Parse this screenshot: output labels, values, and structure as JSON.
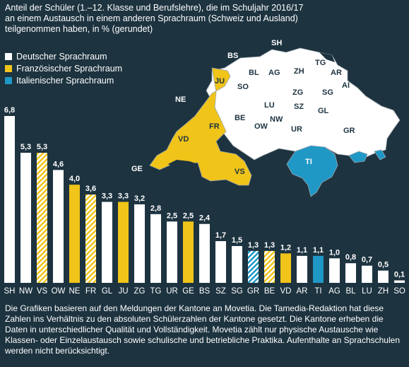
{
  "title": "Anteil der Schüler (1.–12. Klasse und Berufslehre), die im Schuljahr 2016/17\nan einem Austausch in einem anderen Sprachraum (Schweiz und Ausland)\nteilgenommen haben, in % (gerundet)",
  "legend": [
    {
      "label": "Deutscher Sprachraum",
      "color": "#ffffff"
    },
    {
      "label": "Französischer Sprachraum",
      "color": "#f0c419"
    },
    {
      "label": "Italienischer Sprachraum",
      "color": "#1f98c6"
    }
  ],
  "map_labels": [
    {
      "text": "SH"
    },
    {
      "text": "BS"
    },
    {
      "text": "TG"
    },
    {
      "text": "JU"
    },
    {
      "text": "BL"
    },
    {
      "text": "AG"
    },
    {
      "text": "ZH"
    },
    {
      "text": "AR"
    },
    {
      "text": "AI"
    },
    {
      "text": "SO"
    },
    {
      "text": "ZG"
    },
    {
      "text": "SG"
    },
    {
      "text": "NE"
    },
    {
      "text": "LU"
    },
    {
      "text": "SZ"
    },
    {
      "text": "GL"
    },
    {
      "text": "NW"
    },
    {
      "text": "BE"
    },
    {
      "text": "FR"
    },
    {
      "text": "OW"
    },
    {
      "text": "UR"
    },
    {
      "text": "GR"
    },
    {
      "text": "VD"
    },
    {
      "text": "TI"
    },
    {
      "text": "VS"
    },
    {
      "text": "GE"
    }
  ],
  "chart_data": {
    "type": "bar",
    "categories": [
      "SH",
      "NW",
      "VS",
      "OW",
      "NE",
      "FR",
      "GL",
      "JU",
      "ZG",
      "TG",
      "UR",
      "GE",
      "BS",
      "SZ",
      "SG",
      "GR",
      "BE",
      "VD",
      "AR",
      "TI",
      "AG",
      "BL",
      "LU",
      "ZH",
      "SO"
    ],
    "values": [
      6.8,
      5.3,
      5.3,
      4.6,
      4.0,
      3.6,
      3.3,
      3.3,
      3.2,
      2.8,
      2.5,
      2.5,
      2.4,
      1.7,
      1.5,
      1.3,
      1.3,
      1.2,
      1.1,
      1.1,
      1.0,
      0.8,
      0.7,
      0.5,
      0.1
    ],
    "value_labels": [
      "6,8",
      "5,3",
      "5,3",
      "4,6",
      "4,0",
      "3,6",
      "3,3",
      "3,3",
      "3,2",
      "2,8",
      "2,5",
      "2,5",
      "2,4",
      "1,7",
      "1,5",
      "1,3",
      "1,3",
      "1,2",
      "1,1",
      "1,1",
      "1,0",
      "0,8",
      "0,7",
      "0,5",
      "0,1"
    ],
    "language_region": [
      "de",
      "de",
      "mixed-fr-de",
      "de",
      "fr",
      "mixed-fr-de",
      "de",
      "fr",
      "de",
      "de",
      "de",
      "fr",
      "de",
      "de",
      "de",
      "mixed-it-de",
      "mixed-fr-de",
      "fr",
      "de",
      "it",
      "de",
      "de",
      "de",
      "de",
      "de"
    ],
    "region_colors": {
      "de": "#ffffff",
      "fr": "#f0c419",
      "it": "#1f98c6"
    },
    "ylim": [
      0,
      7
    ]
  },
  "footnote": "Die Grafiken basieren auf den Meldungen der Kantone an Movetia. Die Tamedia-Redaktion hat diese Zahlen ins Verhältnis zu den absoluten Schülerzahlen der Kantone gesetzt. Die Kantone erheben die Daten in unterschiedlicher Qualität und Vollständigkeit. Movetia zählt nur physische Austausche wie Klassen- oder Einzelaustausch sowie schulische und betriebliche Praktika. Aufenthalte an Sprachschulen werden nicht berücksichtigt."
}
